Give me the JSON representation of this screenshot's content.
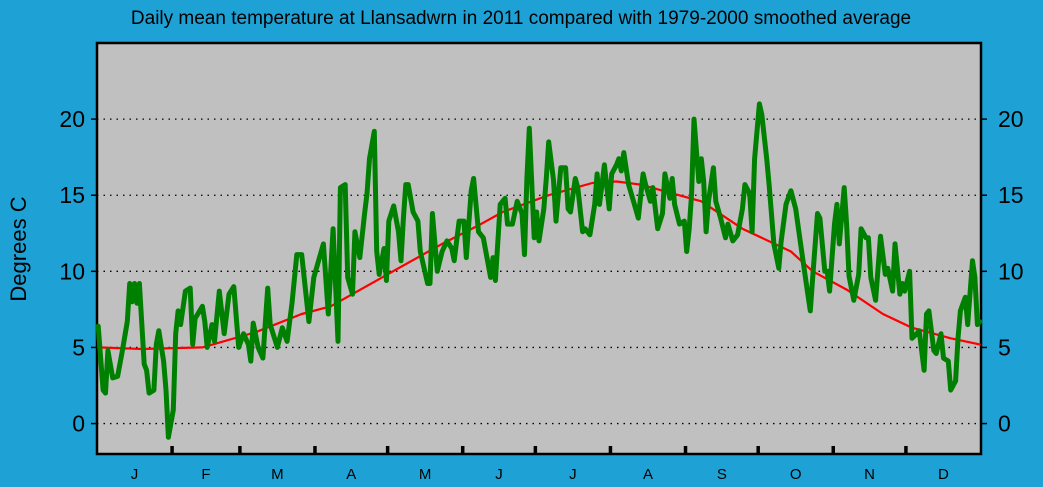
{
  "chart_data": {
    "type": "line",
    "title": "Daily mean temperature at Llansadwrn in 2011 compared with 1979-2000 smoothed average",
    "ylabel": "Degrees  C",
    "xlabel": "",
    "xlim": [
      1,
      365
    ],
    "ylim": [
      -2,
      25
    ],
    "yticks": [
      "0",
      "5",
      "10",
      "15",
      "20"
    ],
    "ytick_values": [
      0,
      5,
      10,
      15,
      20
    ],
    "month_labels": [
      "J",
      "F",
      "M",
      "A",
      "M",
      "J",
      "J",
      "A",
      "S",
      "O",
      "N",
      "D"
    ],
    "month_lengths": [
      31,
      28,
      31,
      30,
      31,
      30,
      31,
      31,
      30,
      31,
      30,
      31
    ],
    "grid": "horizontal dotted",
    "background_color": "#c0c0c0",
    "page_color": "#1ea2d6",
    "series": [
      {
        "color": "#008000",
        "x": [
          1,
          3,
          4,
          5,
          7,
          9,
          11,
          13,
          14,
          15,
          16,
          17,
          18,
          20,
          21,
          22,
          24,
          25,
          26,
          28,
          29,
          30,
          32,
          33,
          34,
          35,
          37,
          39,
          40,
          41,
          44,
          45,
          46,
          48,
          49,
          51,
          53,
          55,
          57,
          59,
          61,
          63,
          64,
          65,
          67,
          69,
          71,
          72,
          75,
          77,
          79,
          81,
          83,
          85,
          88,
          90,
          92,
          94,
          96,
          98,
          100,
          101,
          103,
          104,
          106,
          107,
          109,
          111,
          112,
          113,
          115,
          116,
          117,
          119,
          120,
          121,
          123,
          125,
          126,
          127,
          128,
          129,
          131,
          133,
          134,
          137,
          138,
          139,
          141,
          143,
          145,
          147,
          148,
          150,
          152,
          153,
          155,
          156,
          158,
          160,
          163,
          164,
          165,
          167,
          169,
          170,
          172,
          174,
          176,
          177,
          178,
          179,
          181,
          182,
          183,
          185,
          186,
          187,
          189,
          190,
          192,
          194,
          195,
          196,
          198,
          199,
          201,
          202,
          204,
          206,
          207,
          208,
          210,
          212,
          213,
          215,
          216,
          217,
          218,
          220,
          222,
          224,
          226,
          227,
          229,
          230,
          232,
          234,
          235,
          237,
          238,
          239,
          241,
          243,
          244,
          245,
          246,
          247,
          249,
          250,
          251,
          252,
          253,
          255,
          256,
          258,
          260,
          261,
          263,
          265,
          267,
          268,
          270,
          271,
          272,
          274,
          275,
          277,
          278,
          280,
          282,
          283,
          285,
          287,
          289,
          291,
          294,
          295,
          296,
          298,
          299,
          301,
          302,
          303,
          305,
          306,
          307,
          309,
          310,
          311,
          313,
          315,
          316,
          318,
          319,
          320,
          322,
          324,
          326,
          327,
          329,
          330,
          332,
          333,
          334,
          336,
          337,
          339,
          340,
          342,
          343,
          344,
          346,
          347,
          349,
          350,
          352,
          353,
          355,
          356,
          357,
          359,
          360,
          362,
          363,
          364,
          365
        ],
        "values": [
          6.4,
          2.2,
          2.0,
          4.8,
          3.0,
          3.1,
          4.8,
          6.7,
          9.2,
          8.0,
          9.2,
          7.9,
          9.2,
          3.9,
          3.5,
          2.0,
          2.2,
          5.2,
          6.1,
          4.1,
          2.2,
          -0.9,
          0.9,
          5.9,
          7.4,
          6.5,
          8.7,
          8.9,
          5.2,
          6.9,
          7.7,
          6.7,
          5.0,
          6.5,
          5.4,
          8.7,
          5.9,
          8.5,
          9.0,
          5.0,
          5.9,
          5.2,
          4.1,
          6.6,
          5.0,
          4.3,
          8.9,
          6.5,
          5.0,
          6.3,
          5.4,
          7.9,
          11.1,
          11.1,
          6.7,
          9.6,
          10.7,
          11.8,
          7.2,
          12.8,
          5.4,
          15.5,
          15.7,
          9.6,
          8.5,
          12.6,
          10.9,
          13.8,
          15.1,
          17.4,
          19.2,
          11.3,
          9.8,
          11.5,
          9.4,
          13.3,
          14.3,
          12.6,
          10.7,
          13.5,
          15.7,
          15.7,
          13.9,
          13.3,
          11.3,
          9.2,
          9.2,
          13.8,
          10.0,
          11.3,
          12.0,
          11.5,
          10.7,
          13.3,
          13.3,
          10.9,
          15.3,
          16.1,
          12.6,
          12.2,
          9.6,
          10.9,
          9.4,
          14.4,
          14.8,
          13.1,
          13.1,
          14.6,
          13.8,
          11.1,
          16.1,
          19.4,
          12.2,
          13.9,
          12.0,
          14.1,
          16.1,
          18.5,
          16.0,
          13.3,
          16.8,
          16.8,
          14.1,
          13.9,
          16.1,
          15.5,
          12.6,
          12.8,
          12.4,
          14.4,
          16.4,
          14.4,
          17.0,
          14.1,
          16.4,
          17.0,
          17.4,
          16.6,
          17.8,
          15.7,
          14.6,
          13.5,
          16.4,
          15.7,
          14.6,
          15.5,
          12.8,
          13.8,
          16.4,
          14.8,
          16.1,
          14.4,
          13.1,
          13.3,
          11.3,
          12.8,
          15.1,
          20.0,
          15.9,
          17.4,
          15.9,
          12.6,
          14.6,
          16.8,
          14.6,
          13.5,
          12.2,
          13.1,
          12.0,
          12.4,
          14.1,
          15.7,
          15.1,
          12.6,
          17.4,
          21.0,
          20.3,
          17.4,
          15.7,
          11.8,
          10.2,
          12.0,
          14.4,
          15.3,
          14.1,
          11.8,
          8.5,
          7.4,
          9.6,
          13.8,
          13.5,
          10.0,
          10.0,
          8.7,
          13.1,
          14.4,
          11.8,
          15.5,
          13.1,
          9.7,
          8.1,
          9.8,
          12.8,
          12.2,
          12.2,
          9.6,
          8.1,
          12.3,
          9.8,
          10.2,
          8.7,
          11.8,
          8.5,
          9.2,
          8.7,
          10.0,
          5.6,
          5.9,
          6.1,
          3.5,
          7.2,
          7.4,
          4.8,
          4.6,
          5.9,
          4.3,
          4.1,
          2.2,
          2.8,
          5.6,
          7.4,
          8.3,
          6.5,
          10.7,
          9.6,
          6.5,
          6.7
        ]
      },
      {
        "color": "#ff0000",
        "x": [
          1,
          19,
          44,
          66,
          85,
          97,
          126,
          143,
          159,
          168,
          187,
          205,
          215,
          225,
          234,
          250,
          267,
          287,
          296,
          310,
          325,
          337,
          353,
          365
        ],
        "values": [
          5.0,
          4.9,
          5.0,
          6.0,
          7.2,
          7.7,
          10.3,
          11.8,
          13.1,
          13.9,
          15.0,
          15.8,
          15.9,
          15.7,
          15.3,
          14.6,
          12.8,
          11.3,
          10.0,
          8.8,
          7.2,
          6.3,
          5.6,
          5.2
        ]
      }
    ]
  }
}
